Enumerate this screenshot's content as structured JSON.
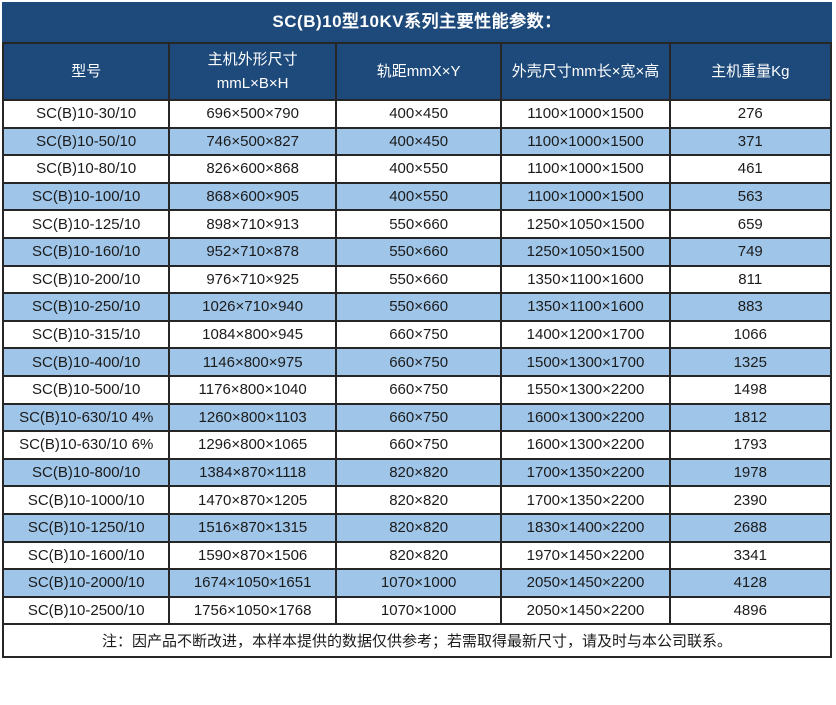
{
  "title": "SC(B)10型10KV系列主要性能参数：",
  "colors": {
    "header_bg": "#1d4a7a",
    "alt_row_bg": "#9fc5e8",
    "border": "#262626"
  },
  "table": {
    "columns": [
      {
        "label": "型号"
      },
      {
        "label": "主机外形尺寸",
        "label2": "mmL×B×H"
      },
      {
        "label": "轨距mmX×Y"
      },
      {
        "label": "外壳尺寸mm长×宽×高"
      },
      {
        "label": "主机重量Kg"
      }
    ],
    "rows": [
      [
        "SC(B)10-30/10",
        "696×500×790",
        "400×450",
        "1100×1000×1500",
        "276"
      ],
      [
        "SC(B)10-50/10",
        "746×500×827",
        "400×450",
        "1100×1000×1500",
        "371"
      ],
      [
        "SC(B)10-80/10",
        "826×600×868",
        "400×550",
        "1100×1000×1500",
        "461"
      ],
      [
        "SC(B)10-100/10",
        "868×600×905",
        "400×550",
        "1100×1000×1500",
        "563"
      ],
      [
        "SC(B)10-125/10",
        "898×710×913",
        "550×660",
        "1250×1050×1500",
        "659"
      ],
      [
        "SC(B)10-160/10",
        "952×710×878",
        "550×660",
        "1250×1050×1500",
        "749"
      ],
      [
        "SC(B)10-200/10",
        "976×710×925",
        "550×660",
        "1350×1100×1600",
        "811"
      ],
      [
        "SC(B)10-250/10",
        "1026×710×940",
        "550×660",
        "1350×1100×1600",
        "883"
      ],
      [
        "SC(B)10-315/10",
        "1084×800×945",
        "660×750",
        "1400×1200×1700",
        "1066"
      ],
      [
        "SC(B)10-400/10",
        "1146×800×975",
        "660×750",
        "1500×1300×1700",
        "1325"
      ],
      [
        "SC(B)10-500/10",
        "1176×800×1040",
        "660×750",
        "1550×1300×2200",
        "1498"
      ],
      [
        "SC(B)10-630/10 4%",
        "1260×800×1103",
        "660×750",
        "1600×1300×2200",
        "1812"
      ],
      [
        "SC(B)10-630/10 6%",
        "1296×800×1065",
        "660×750",
        "1600×1300×2200",
        "1793"
      ],
      [
        "SC(B)10-800/10",
        "1384×870×1118",
        "820×820",
        "1700×1350×2200",
        "1978"
      ],
      [
        "SC(B)10-1000/10",
        "1470×870×1205",
        "820×820",
        "1700×1350×2200",
        "2390"
      ],
      [
        "SC(B)10-1250/10",
        "1516×870×1315",
        "820×820",
        "1830×1400×2200",
        "2688"
      ],
      [
        "SC(B)10-1600/10",
        "1590×870×1506",
        "820×820",
        "1970×1450×2200",
        "3341"
      ],
      [
        "SC(B)10-2000/10",
        "1674×1050×1651",
        "1070×1000",
        "2050×1450×2200",
        "4128"
      ],
      [
        "SC(B)10-2500/10",
        "1756×1050×1768",
        "1070×1000",
        "2050×1450×2200",
        "4896"
      ]
    ]
  },
  "note": "注：因产品不断改进，本样本提供的数据仅供参考；若需取得最新尺寸，请及时与本公司联系。"
}
